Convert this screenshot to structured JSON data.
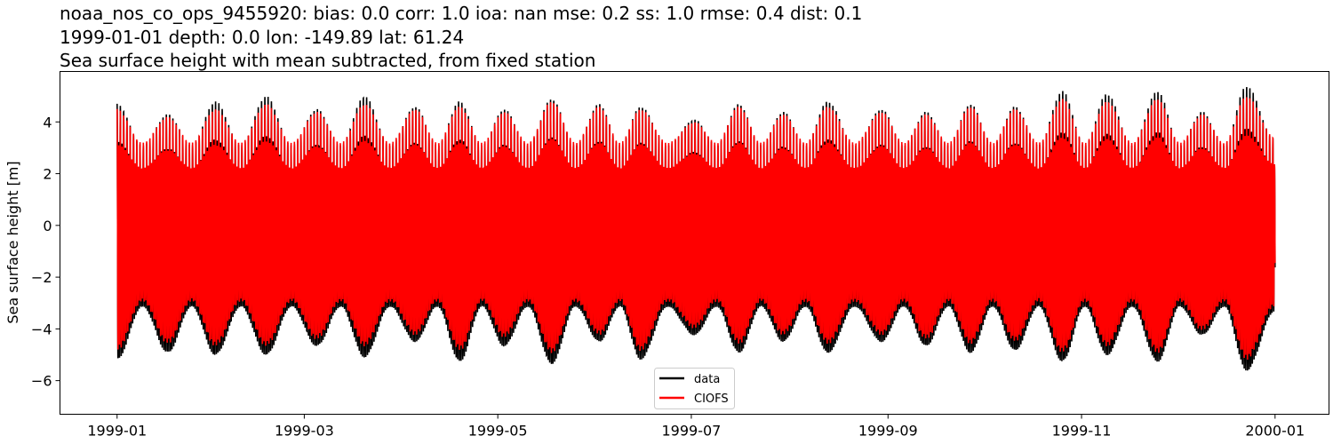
{
  "chart_data": {
    "type": "line",
    "title_lines": [
      "noaa_nos_co_ops_9455920: bias: 0.0  corr: 1.0  ioa: nan  mse: 0.2  ss: 1.0  rmse: 0.4  dist: 0.1",
      "1999-01-01 depth: 0.0 lon: -149.89 lat: 61.24",
      "Sea surface height with mean subtracted, from fixed station"
    ],
    "xlabel": "",
    "ylabel": "Sea surface height [m]",
    "xlim": [
      "1998-12-14",
      "2000-01-18"
    ],
    "ylim": [
      -7.3,
      5.95
    ],
    "x_ticks": [
      "1999-01",
      "1999-03",
      "1999-05",
      "1999-07",
      "1999-09",
      "1999-11",
      "2000-01"
    ],
    "y_ticks": [
      -6,
      -4,
      -2,
      0,
      2,
      4
    ],
    "grid": false,
    "legend_position": "lower center",
    "description_of_signal": "",
    "spring_tide_dates": [
      "1999-01-01",
      "1999-01-17",
      "1999-02-01",
      "1999-02-17",
      "1999-03-05",
      "1999-03-20",
      "1999-04-05",
      "1999-04-19",
      "1999-05-03",
      "1999-05-18",
      "1999-06-02",
      "1999-06-15",
      "1999-07-02",
      "1999-07-16",
      "1999-07-30",
      "1999-08-13",
      "1999-08-30",
      "1999-09-13",
      "1999-09-27",
      "1999-10-11",
      "1999-10-26",
      "1999-11-09",
      "1999-11-25",
      "1999-12-09",
      "1999-12-23"
    ],
    "series": [
      {
        "name": "data",
        "color": "#000000",
        "spring_highs": [
          4.7,
          4.3,
          4.8,
          5.0,
          4.5,
          5.0,
          4.6,
          4.8,
          4.5,
          4.9,
          4.7,
          4.6,
          4.1,
          4.7,
          4.4,
          4.8,
          4.5,
          4.4,
          4.7,
          4.6,
          5.2,
          5.1,
          5.2,
          4.4,
          5.4
        ],
        "spring_lows": [
          -6.1,
          -5.8,
          -5.9,
          -5.9,
          -5.5,
          -6.0,
          -5.3,
          -6.2,
          -5.5,
          -6.3,
          -5.3,
          -6.1,
          -5.0,
          -5.8,
          -5.3,
          -5.8,
          -5.3,
          -5.5,
          -5.8,
          -5.7,
          -6.2,
          -5.9,
          -6.2,
          -5.0,
          -6.6
        ],
        "neap_high": 3.1,
        "neap_low": -3.7
      },
      {
        "name": "CIOFS",
        "color": "#ff0000",
        "spring_highs": [
          4.5,
          4.2,
          4.5,
          4.7,
          4.4,
          4.7,
          4.5,
          4.6,
          4.4,
          4.8,
          4.6,
          4.5,
          4.0,
          4.6,
          4.3,
          4.6,
          4.4,
          4.3,
          4.6,
          4.5,
          4.9,
          4.8,
          4.9,
          4.3,
          5.0
        ],
        "spring_lows": [
          -5.6,
          -5.3,
          -5.4,
          -5.4,
          -5.1,
          -5.4,
          -4.9,
          -5.6,
          -5.0,
          -5.7,
          -4.9,
          -5.6,
          -4.6,
          -5.3,
          -4.9,
          -5.3,
          -4.9,
          -5.1,
          -5.3,
          -5.2,
          -5.7,
          -5.4,
          -5.7,
          -4.7,
          -6.0
        ],
        "neap_high": 3.2,
        "neap_low": -3.4
      }
    ]
  }
}
